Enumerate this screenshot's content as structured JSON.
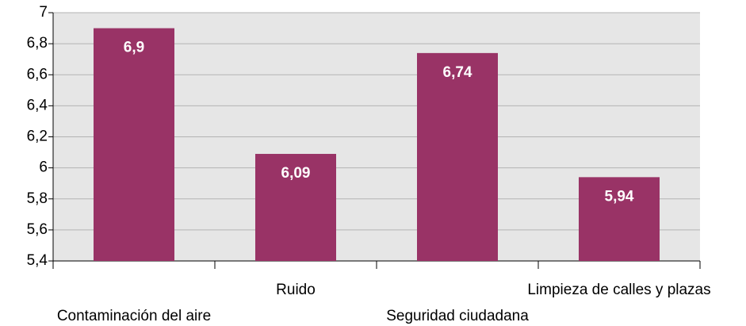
{
  "chart_data": {
    "type": "bar",
    "categories": [
      "Contaminación del aire",
      "Ruido",
      "Seguridad ciudadana",
      "Limpieza de calles y plazas"
    ],
    "values": [
      6.9,
      6.09,
      6.74,
      5.94
    ],
    "value_labels": [
      "6,9",
      "6,09",
      "6,74",
      "5,94"
    ],
    "color": "#993366",
    "ylim": [
      5.4,
      7
    ],
    "yticks": [
      {
        "value": 5.4,
        "label": "5,4"
      },
      {
        "value": 5.6,
        "label": "5,6"
      },
      {
        "value": 5.8,
        "label": "5,8"
      },
      6,
      {
        "value": 6.2,
        "label": "6,2"
      },
      {
        "value": 6.4,
        "label": "6,4"
      },
      {
        "value": 6.6,
        "label": "6,6"
      },
      {
        "value": 6.8,
        "label": "6,8"
      },
      7
    ],
    "grid": true
  }
}
